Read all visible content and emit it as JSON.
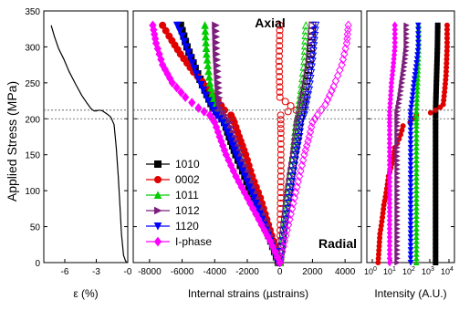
{
  "figure": {
    "ylabel": "Applied Stress (MPa)",
    "y_ticks": [
      "0",
      "50",
      "100",
      "150",
      "200",
      "250",
      "300",
      "350"
    ],
    "dashed_stress_levels": [
      200,
      212
    ]
  },
  "chart_data": [
    {
      "type": "line",
      "panel": "stress-strain",
      "xlabel": "ε (%)",
      "ylabel": "Applied Stress (MPa)",
      "xlim": [
        -8,
        0
      ],
      "ylim": [
        0,
        350
      ],
      "x_ticks": [
        "-6",
        "-3",
        "-0"
      ],
      "series": [
        {
          "color": "#000000",
          "x": [
            -7.3,
            -7.0,
            -6.6,
            -6.1,
            -5.6,
            -5.0,
            -4.4,
            -3.9,
            -3.5,
            -3.2,
            -3.0,
            -2.7,
            -2.4,
            -2.2,
            -1.9,
            -1.6,
            -1.3,
            -1.1,
            -0.9,
            -0.75,
            -0.6,
            -0.4,
            -0.2,
            -0.05
          ],
          "y": [
            330,
            315,
            298,
            283,
            266,
            249,
            233,
            222,
            214,
            211,
            211,
            212,
            211,
            209,
            206,
            202,
            192,
            160,
            120,
            80,
            40,
            10,
            2,
            0
          ]
        }
      ]
    },
    {
      "type": "scatter",
      "panel": "internal-strains",
      "xlabel": "Internal strains (µstrains)",
      "xlim": [
        -9000,
        5000
      ],
      "ylim": [
        0,
        350
      ],
      "x_ticks": [
        "-8000",
        "-6000",
        "-4000",
        "-2000",
        "0",
        "2000",
        "4000"
      ],
      "annotations": [
        "Axial",
        "Radial"
      ],
      "legend_position": "center-left",
      "series": [
        {
          "name": "1010",
          "color": "#000000",
          "marker": "square",
          "axial": [
            [
              -100,
              0
            ],
            [
              -550,
              30
            ],
            [
              -1100,
              60
            ],
            [
              -1650,
              90
            ],
            [
              -2150,
              120
            ],
            [
              -2700,
              150
            ],
            [
              -3100,
              175
            ],
            [
              -3400,
              195
            ],
            [
              -3700,
              205
            ],
            [
              -4100,
              215
            ],
            [
              -4600,
              240
            ],
            [
              -5200,
              270
            ],
            [
              -5700,
              300
            ],
            [
              -6100,
              330
            ]
          ],
          "radial": [
            [
              0,
              0
            ],
            [
              150,
              30
            ],
            [
              300,
              60
            ],
            [
              500,
              90
            ],
            [
              700,
              120
            ],
            [
              900,
              150
            ],
            [
              1100,
              175
            ],
            [
              1200,
              195
            ],
            [
              1300,
              205
            ],
            [
              1500,
              230
            ],
            [
              1700,
              260
            ],
            [
              1900,
              290
            ],
            [
              2000,
              330
            ]
          ]
        },
        {
          "name": "0002",
          "color": "#e00000",
          "marker": "circle",
          "axial": [
            [
              0,
              0
            ],
            [
              -400,
              30
            ],
            [
              -800,
              60
            ],
            [
              -1200,
              90
            ],
            [
              -1700,
              120
            ],
            [
              -2100,
              150
            ],
            [
              -2500,
              175
            ],
            [
              -2800,
              195
            ],
            [
              -3000,
              205
            ],
            [
              -3400,
              212
            ],
            [
              -3800,
              225
            ],
            [
              -4500,
              245
            ],
            [
              -5300,
              265
            ],
            [
              -6100,
              290
            ],
            [
              -6800,
              315
            ],
            [
              -7200,
              330
            ]
          ],
          "radial": [
            [
              0,
              0
            ],
            [
              30,
              60
            ],
            [
              60,
              120
            ],
            [
              60,
              180
            ],
            [
              50,
              205
            ],
            [
              500,
              210
            ],
            [
              1000,
              212
            ],
            [
              0,
              230
            ],
            [
              -50,
              280
            ],
            [
              0,
              330
            ]
          ]
        },
        {
          "name": "1011",
          "color": "#00cc00",
          "marker": "triangle-up",
          "axial": [
            [
              -100,
              0
            ],
            [
              -500,
              30
            ],
            [
              -1000,
              60
            ],
            [
              -1500,
              90
            ],
            [
              -2000,
              120
            ],
            [
              -2500,
              150
            ],
            [
              -2900,
              175
            ],
            [
              -3300,
              195
            ],
            [
              -3600,
              205
            ],
            [
              -4000,
              220
            ],
            [
              -4300,
              250
            ],
            [
              -4500,
              290
            ],
            [
              -4600,
              330
            ]
          ],
          "radial": [
            [
              0,
              0
            ],
            [
              150,
              30
            ],
            [
              300,
              60
            ],
            [
              450,
              90
            ],
            [
              600,
              120
            ],
            [
              800,
              150
            ],
            [
              900,
              175
            ],
            [
              1000,
              195
            ],
            [
              1100,
              205
            ],
            [
              1300,
              240
            ],
            [
              1500,
              280
            ],
            [
              1600,
              330
            ]
          ]
        },
        {
          "name": "1012",
          "color": "#7b1f7b",
          "marker": "triangle-right",
          "axial": [
            [
              -50,
              0
            ],
            [
              -450,
              30
            ],
            [
              -900,
              60
            ],
            [
              -1400,
              90
            ],
            [
              -1900,
              120
            ],
            [
              -2400,
              150
            ],
            [
              -2800,
              175
            ],
            [
              -3100,
              195
            ],
            [
              -3400,
              205
            ],
            [
              -3700,
              215
            ],
            [
              -3800,
              250
            ],
            [
              -3900,
              290
            ],
            [
              -3950,
              330
            ]
          ],
          "radial": [
            [
              0,
              0
            ],
            [
              150,
              30
            ],
            [
              300,
              60
            ],
            [
              450,
              90
            ],
            [
              650,
              120
            ],
            [
              850,
              150
            ],
            [
              1000,
              175
            ],
            [
              1100,
              195
            ],
            [
              1200,
              205
            ],
            [
              1500,
              240
            ],
            [
              1800,
              280
            ],
            [
              2000,
              330
            ]
          ]
        },
        {
          "name": "1120",
          "color": "#0000ff",
          "marker": "triangle-down",
          "axial": [
            [
              -100,
              0
            ],
            [
              -600,
              30
            ],
            [
              -1100,
              60
            ],
            [
              -1600,
              90
            ],
            [
              -2150,
              120
            ],
            [
              -2700,
              150
            ],
            [
              -3100,
              175
            ],
            [
              -3500,
              195
            ],
            [
              -3900,
              205
            ],
            [
              -4400,
              225
            ],
            [
              -5000,
              255
            ],
            [
              -5500,
              285
            ],
            [
              -6000,
              315
            ],
            [
              -6300,
              330
            ]
          ],
          "radial": [
            [
              0,
              0
            ],
            [
              200,
              30
            ],
            [
              400,
              60
            ],
            [
              600,
              90
            ],
            [
              800,
              120
            ],
            [
              1000,
              150
            ],
            [
              1200,
              175
            ],
            [
              1300,
              195
            ],
            [
              1500,
              205
            ],
            [
              1800,
              240
            ],
            [
              2000,
              280
            ],
            [
              2200,
              330
            ]
          ]
        },
        {
          "name": "I-phase",
          "color": "#ff00ff",
          "marker": "diamond",
          "axial": [
            [
              0,
              0
            ],
            [
              -600,
              30
            ],
            [
              -1300,
              60
            ],
            [
              -2000,
              90
            ],
            [
              -2700,
              120
            ],
            [
              -3300,
              150
            ],
            [
              -3700,
              175
            ],
            [
              -4000,
              195
            ],
            [
              -4300,
              205
            ],
            [
              -5000,
              215
            ],
            [
              -5800,
              230
            ],
            [
              -6600,
              250
            ],
            [
              -7200,
              275
            ],
            [
              -7600,
              305
            ],
            [
              -7800,
              330
            ]
          ],
          "radial": [
            [
              0,
              0
            ],
            [
              300,
              30
            ],
            [
              600,
              60
            ],
            [
              900,
              90
            ],
            [
              1200,
              120
            ],
            [
              1500,
              150
            ],
            [
              1800,
              175
            ],
            [
              2000,
              195
            ],
            [
              2300,
              205
            ],
            [
              2800,
              220
            ],
            [
              3300,
              245
            ],
            [
              3800,
              275
            ],
            [
              4100,
              305
            ],
            [
              4200,
              330
            ]
          ]
        }
      ]
    },
    {
      "type": "line",
      "panel": "intensity",
      "xlabel": "Intensity (A.U.)",
      "xscale": "log",
      "xlim": [
        1,
        10000
      ],
      "ylim": [
        0,
        350
      ],
      "x_ticks": [
        {
          "base": "10",
          "exp": "0"
        },
        {
          "base": "10",
          "exp": "1"
        },
        {
          "base": "10",
          "exp": "2"
        },
        {
          "base": "10",
          "exp": "3"
        },
        {
          "base": "10",
          "exp": "4"
        }
      ],
      "series": [
        {
          "name": "1010",
          "color": "#000000",
          "x": [
            2000,
            2000,
            2000,
            2000,
            2200,
            2500,
            2600
          ],
          "y": [
            0,
            100,
            190,
            210,
            250,
            300,
            330
          ]
        },
        {
          "name": "0002",
          "color": "#e00000",
          "x": [
            2,
            2.5,
            4,
            7,
            15,
            40,
            200,
            2000,
            5000,
            7000,
            8000,
            8000
          ],
          "y": [
            0,
            40,
            80,
            120,
            160,
            190,
            205,
            212,
            220,
            260,
            300,
            330
          ]
        },
        {
          "name": "1011",
          "color": "#00cc00",
          "x": [
            200,
            200,
            200,
            200,
            230,
            260,
            260
          ],
          "y": [
            0,
            100,
            190,
            210,
            250,
            300,
            330
          ]
        },
        {
          "name": "1012",
          "color": "#7b1f7b",
          "x": [
            20,
            20,
            20,
            20,
            35,
            60,
            60
          ],
          "y": [
            0,
            100,
            190,
            210,
            250,
            300,
            330
          ]
        },
        {
          "name": "1120",
          "color": "#0000ff",
          "x": [
            100,
            100,
            100,
            100,
            150,
            250,
            250
          ],
          "y": [
            0,
            100,
            190,
            210,
            250,
            300,
            330
          ]
        },
        {
          "name": "I-phase",
          "color": "#ff00ff",
          "x": [
            8,
            8,
            8,
            8,
            10,
            15,
            15
          ],
          "y": [
            0,
            100,
            190,
            210,
            250,
            300,
            330
          ]
        }
      ]
    }
  ]
}
